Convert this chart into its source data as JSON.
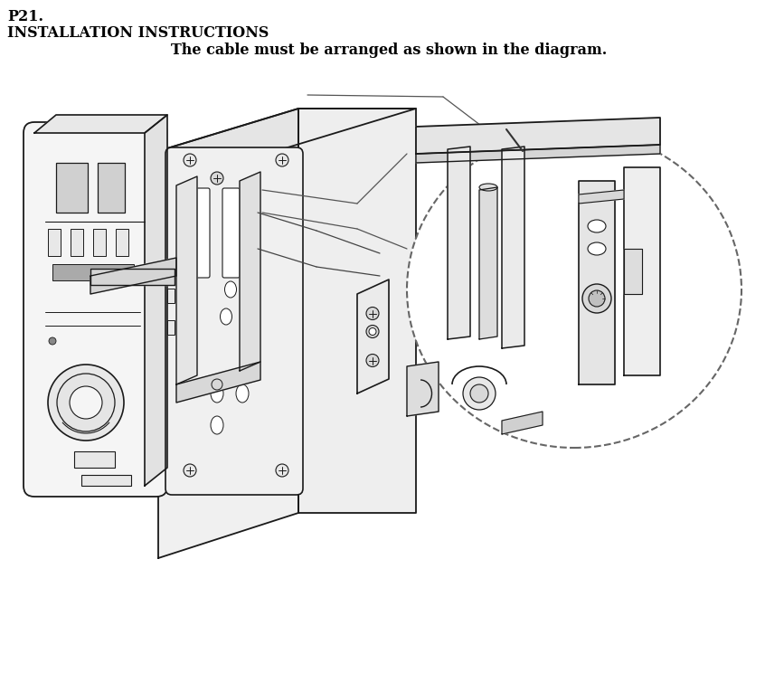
{
  "title_line1": "P21.",
  "title_line2": "INSTALLATION INSTRUCTIONS",
  "subtitle": "The cable must be arranged as shown in the diagram.",
  "bg_color": "#ffffff",
  "text_color": "#000000",
  "title1_fontsize": 11.5,
  "title2_fontsize": 11.5,
  "subtitle_fontsize": 11.5,
  "fig_width": 8.46,
  "fig_height": 7.65,
  "dpi": 100,
  "line_color": "#1a1a1a",
  "lw_main": 1.2,
  "lw_thin": 0.7,
  "fill_light": "#f5f5f5",
  "fill_mid": "#e8e8e8",
  "fill_dark": "#d8d8d8"
}
